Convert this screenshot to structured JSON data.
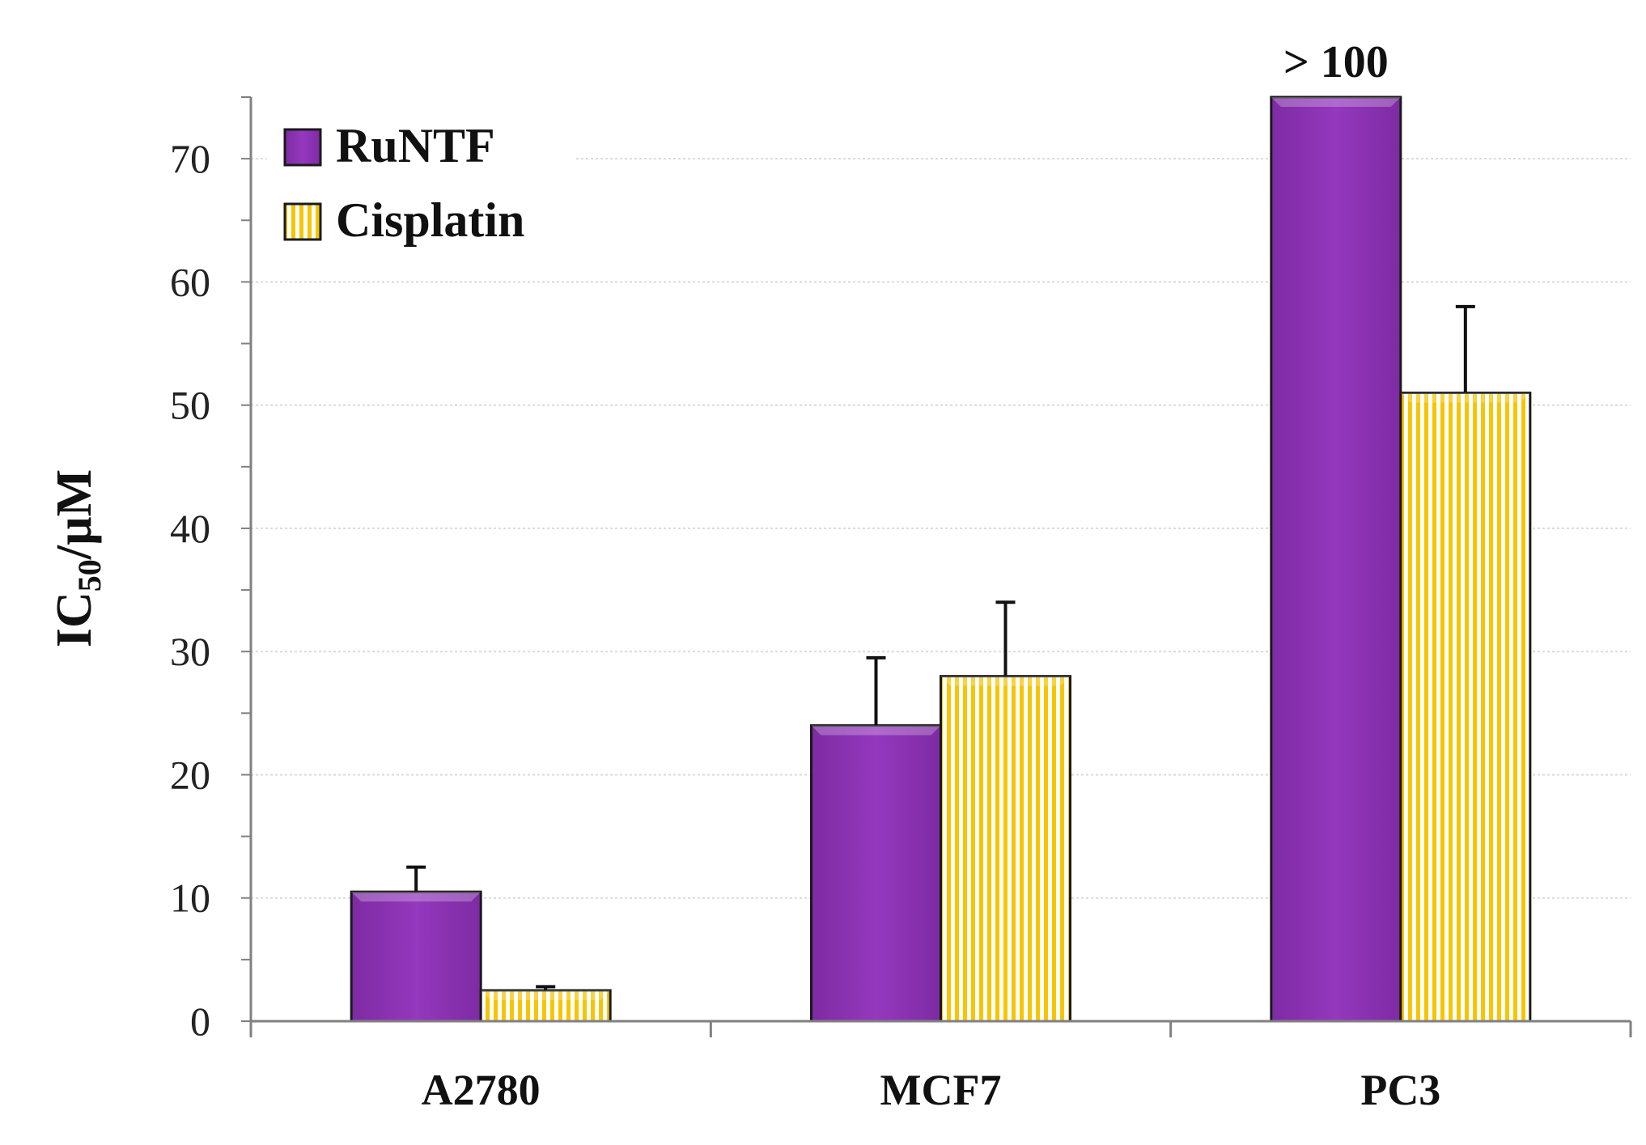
{
  "chart_data": {
    "type": "bar",
    "title": "",
    "xlabel": "",
    "ylabel": {
      "main": "IC",
      "sub": "50",
      "unit": "/µM"
    },
    "categories": [
      "A2780",
      "MCF7",
      "PC3"
    ],
    "ylim": [
      0,
      75
    ],
    "yticks": [
      0,
      10,
      20,
      30,
      40,
      50,
      60,
      70
    ],
    "grid": true,
    "legend_position": "top-left",
    "series": [
      {
        "name": "RuNTF",
        "values": [
          10.5,
          24,
          75
        ],
        "errors": [
          2.0,
          5.5,
          0
        ],
        "color": "#8B34B0",
        "pattern": "solid",
        "clipped": [
          false,
          false,
          true
        ],
        "annotations": [
          "",
          "",
          "> 100"
        ]
      },
      {
        "name": "Cisplatin",
        "values": [
          2.5,
          28,
          51
        ],
        "errors": [
          0.3,
          6.0,
          7.0
        ],
        "color": "#F7C500",
        "pattern": "vertical-stripes",
        "clipped": [
          false,
          false,
          false
        ],
        "annotations": [
          "",
          "",
          ""
        ]
      }
    ]
  }
}
